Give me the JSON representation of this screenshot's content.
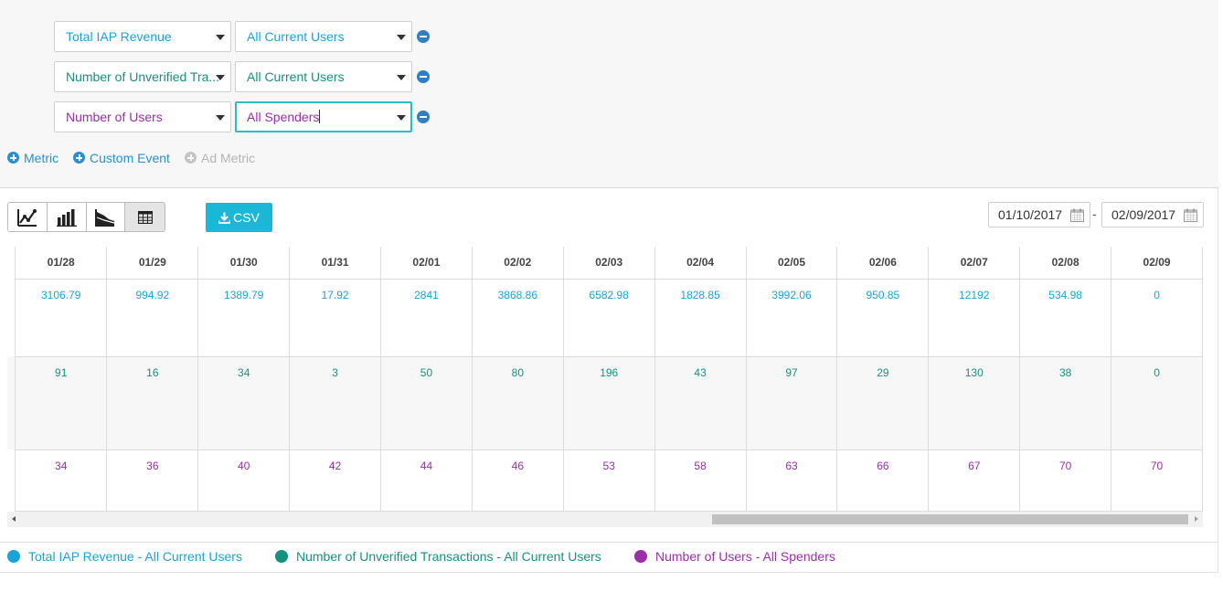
{
  "metrics": [
    {
      "metric": "Total IAP Revenue",
      "segment": "All Current Users",
      "color": "#1aa3d9"
    },
    {
      "metric": "Number of Unverified Tra...",
      "segment": "All Current Users",
      "color": "#16917f"
    },
    {
      "metric": "Number of Users",
      "segment": "All Spenders",
      "color": "#9a2fa8"
    }
  ],
  "add_links": {
    "metric": "Metric",
    "custom_event": "Custom Event",
    "ad_metric": "Ad Metric"
  },
  "toolbar": {
    "chart_buttons": [
      "line-chart-icon",
      "bar-chart-icon",
      "area-chart-icon",
      "table-icon"
    ],
    "active_view": "table",
    "csv_label": "CSV"
  },
  "date_range": {
    "start": "01/10/2017",
    "separator": "-",
    "end": "02/09/2017"
  },
  "table": {
    "columns": [
      "01/28",
      "01/29",
      "01/30",
      "01/31",
      "02/01",
      "02/02",
      "02/03",
      "02/04",
      "02/05",
      "02/06",
      "02/07",
      "02/08",
      "02/09"
    ],
    "rows": [
      [
        "3106.79",
        "994.92",
        "1389.79",
        "17.92",
        "2841",
        "3868.86",
        "6582.98",
        "1828.85",
        "3992.06",
        "950.85",
        "12192",
        "534.98",
        "0"
      ],
      [
        "91",
        "16",
        "34",
        "3",
        "50",
        "80",
        "196",
        "43",
        "97",
        "29",
        "130",
        "38",
        "0"
      ],
      [
        "34",
        "36",
        "40",
        "42",
        "44",
        "46",
        "53",
        "58",
        "63",
        "66",
        "67",
        "70",
        "70"
      ]
    ]
  },
  "legend": [
    {
      "label": "Total IAP Revenue - All Current Users",
      "color": "#1aa3d9"
    },
    {
      "label": "Number of Unverified Transactions - All Current Users",
      "color": "#16917f"
    },
    {
      "label": "Number of Users - All Spenders",
      "color": "#9a2fa8"
    }
  ]
}
